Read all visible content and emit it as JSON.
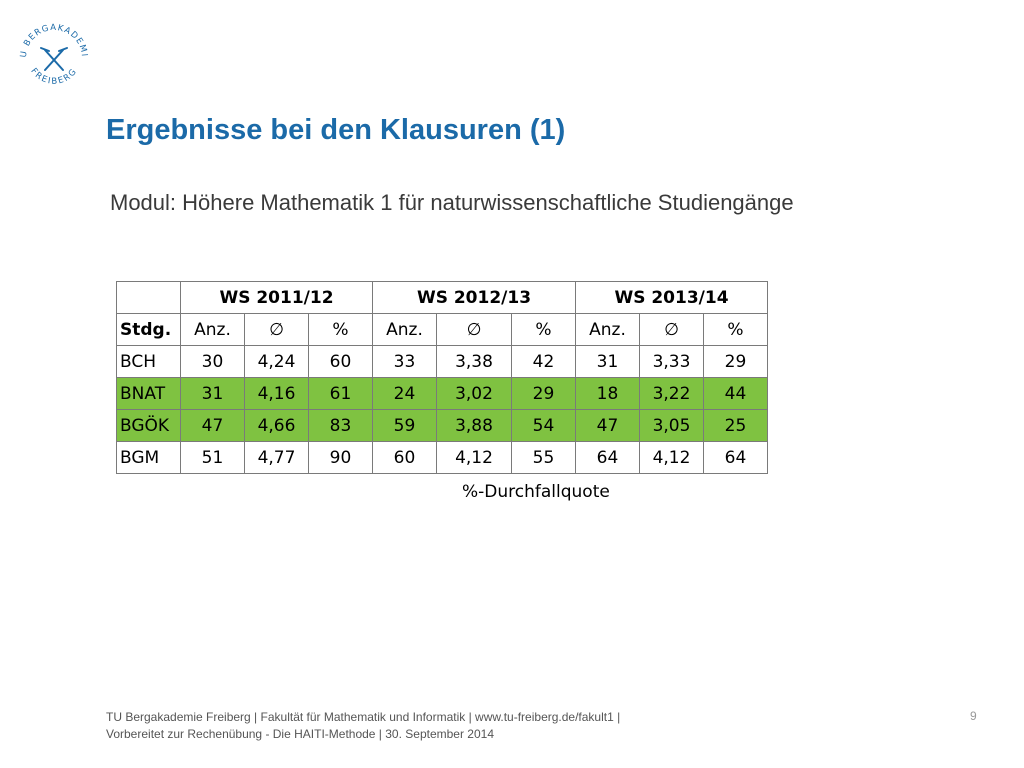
{
  "logo": {
    "text_top": "TU BERGAKADEMIE",
    "text_bottom": "FREIBERG",
    "color": "#1b6aa8"
  },
  "title": "Ergebnisse bei den Klausuren (1)",
  "subtitle": "Modul: Höhere Mathematik 1 für naturwissenschaftliche Studiengänge",
  "table": {
    "semesters": [
      "WS 2011/12",
      "WS 2012/13",
      "WS 2013/14"
    ],
    "row_header": "Stdg.",
    "subheaders": [
      "Anz.",
      "∅",
      "%"
    ],
    "rows": [
      {
        "name": "BCH",
        "values": [
          "30",
          "4,24",
          "60",
          "33",
          "3,38",
          "42",
          "31",
          "3,33",
          "29"
        ],
        "highlight": false
      },
      {
        "name": "BNAT",
        "values": [
          "31",
          "4,16",
          "61",
          "24",
          "3,02",
          "29",
          "18",
          "3,22",
          "44"
        ],
        "highlight": true
      },
      {
        "name": "BGÖK",
        "values": [
          "47",
          "4,66",
          "83",
          "59",
          "3,88",
          "54",
          "47",
          "3,05",
          "25"
        ],
        "highlight": true
      },
      {
        "name": "BGM",
        "values": [
          "51",
          "4,77",
          "90",
          "60",
          "4,12",
          "55",
          "64",
          "4,12",
          "64"
        ],
        "highlight": false
      }
    ],
    "highlight_color": "#7fc241"
  },
  "note": "%-Durchfallquote",
  "footer": {
    "line1": "TU Bergakademie Freiberg | Fakultät für Mathematik und Informatik | www.tu-freiberg.de/fakult1 |",
    "line2": "Vorbereitet zur Rechenübung - Die HAITI-Methode | 30. September 2014"
  },
  "page_number": "9"
}
